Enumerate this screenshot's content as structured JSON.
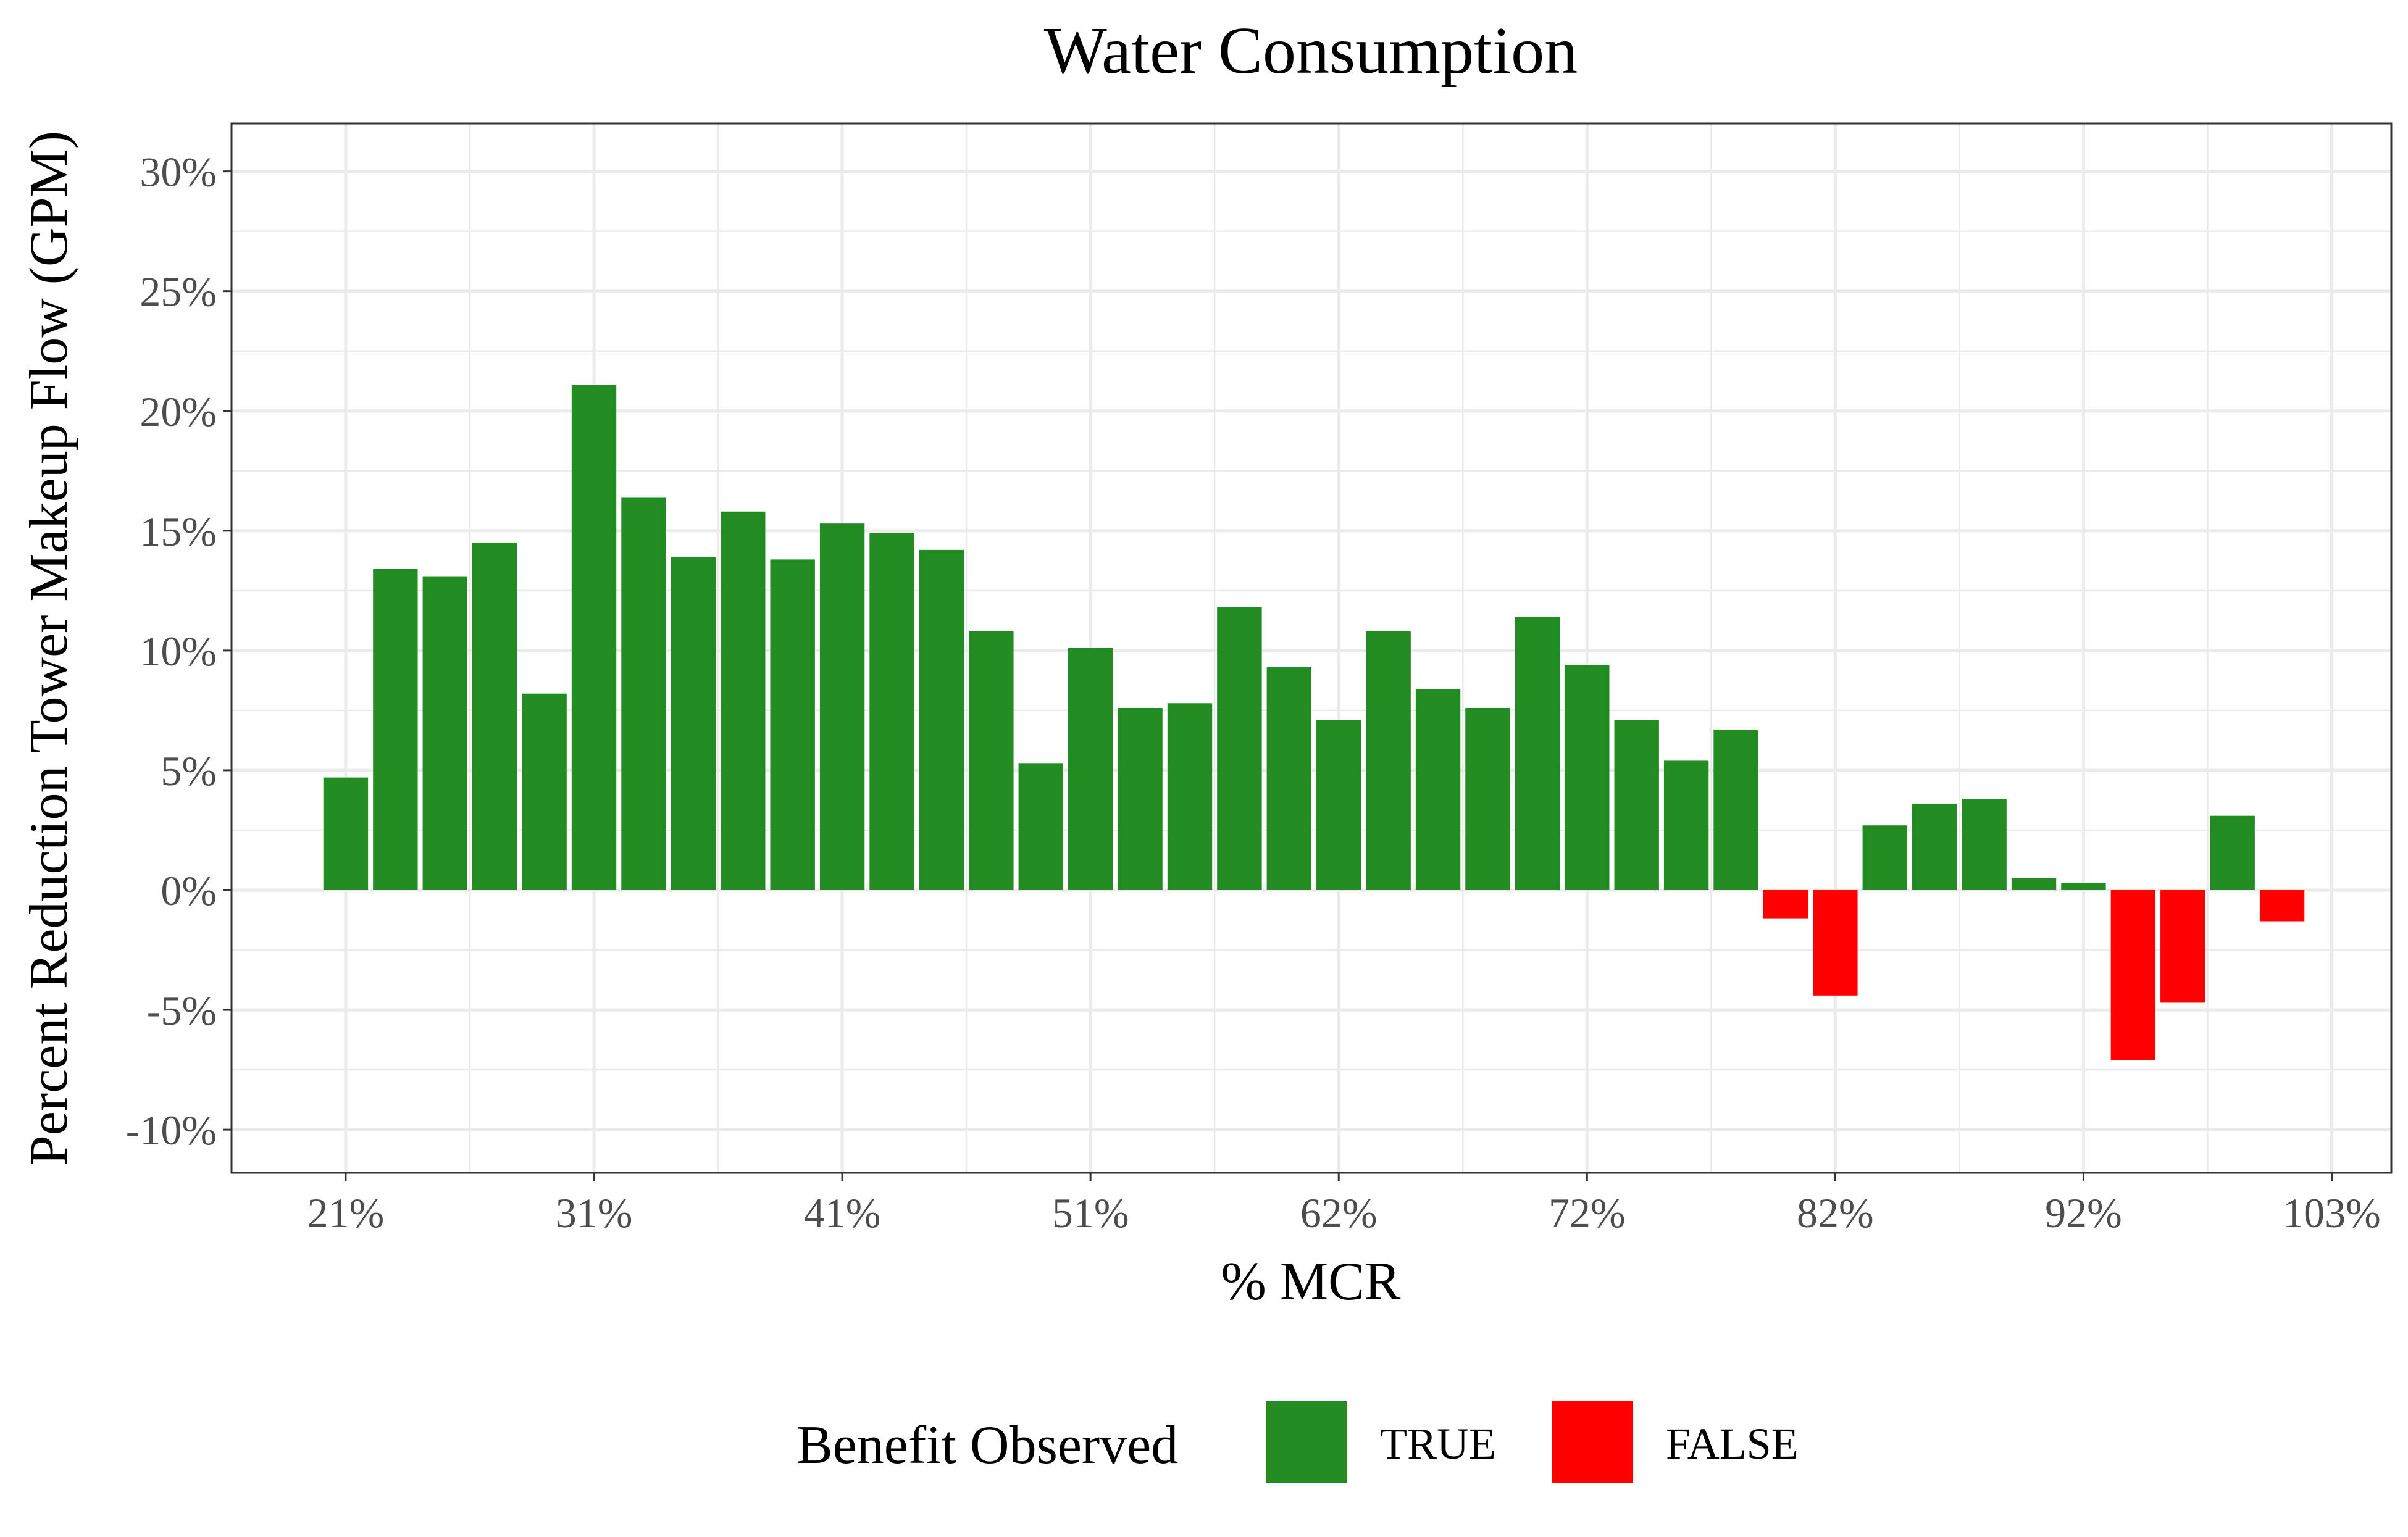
{
  "chart_data": {
    "type": "bar",
    "title": "Water Consumption",
    "xlabel": "% MCR",
    "ylabel": "Percent Reduction Tower Makeup Flow (GPM)",
    "x_tick_labels": [
      "21%",
      "31%",
      "41%",
      "51%",
      "62%",
      "72%",
      "82%",
      "92%",
      "103%"
    ],
    "x_tick_positions": [
      21,
      31,
      41,
      51,
      61,
      71,
      81,
      91,
      101
    ],
    "xlim": [
      16.4,
      103.4
    ],
    "y_tick_labels": [
      "-10%",
      "-5%",
      "0%",
      "5%",
      "10%",
      "15%",
      "20%",
      "25%",
      "30%"
    ],
    "y_tick_values": [
      -10,
      -5,
      0,
      5,
      10,
      15,
      20,
      25,
      30
    ],
    "ylim": [
      -11.8,
      32.0
    ],
    "grid": true,
    "legend_position": "bottom",
    "legend": {
      "title": "Benefit Observed",
      "entries": [
        {
          "label": "TRUE",
          "color": "#228B22"
        },
        {
          "label": "FALSE",
          "color": "#FF0000"
        }
      ]
    },
    "colors": {
      "true": "#228B22",
      "false": "#FF0000"
    },
    "bar_width": 1.8,
    "points": [
      {
        "x": 21,
        "y": 4.7,
        "benefit": true
      },
      {
        "x": 23,
        "y": 13.4,
        "benefit": true
      },
      {
        "x": 25,
        "y": 13.1,
        "benefit": true
      },
      {
        "x": 27,
        "y": 14.5,
        "benefit": true
      },
      {
        "x": 29,
        "y": 8.2,
        "benefit": true
      },
      {
        "x": 31,
        "y": 21.1,
        "benefit": true
      },
      {
        "x": 33,
        "y": 16.4,
        "benefit": true
      },
      {
        "x": 35,
        "y": 13.9,
        "benefit": true
      },
      {
        "x": 37,
        "y": 15.8,
        "benefit": true
      },
      {
        "x": 39,
        "y": 13.8,
        "benefit": true
      },
      {
        "x": 41,
        "y": 15.3,
        "benefit": true
      },
      {
        "x": 43,
        "y": 14.9,
        "benefit": true
      },
      {
        "x": 45,
        "y": 14.2,
        "benefit": true
      },
      {
        "x": 47,
        "y": 10.8,
        "benefit": true
      },
      {
        "x": 49,
        "y": 5.3,
        "benefit": true
      },
      {
        "x": 51,
        "y": 10.1,
        "benefit": true
      },
      {
        "x": 53,
        "y": 7.6,
        "benefit": true
      },
      {
        "x": 55,
        "y": 7.8,
        "benefit": true
      },
      {
        "x": 57,
        "y": 11.8,
        "benefit": true
      },
      {
        "x": 59,
        "y": 9.3,
        "benefit": true
      },
      {
        "x": 61,
        "y": 7.1,
        "benefit": true
      },
      {
        "x": 63,
        "y": 10.8,
        "benefit": true
      },
      {
        "x": 65,
        "y": 8.4,
        "benefit": true
      },
      {
        "x": 67,
        "y": 7.6,
        "benefit": true
      },
      {
        "x": 69,
        "y": 11.4,
        "benefit": true
      },
      {
        "x": 71,
        "y": 9.4,
        "benefit": true
      },
      {
        "x": 73,
        "y": 7.1,
        "benefit": true
      },
      {
        "x": 75,
        "y": 5.4,
        "benefit": true
      },
      {
        "x": 77,
        "y": 6.7,
        "benefit": true
      },
      {
        "x": 79,
        "y": -1.2,
        "benefit": false
      },
      {
        "x": 81,
        "y": -4.4,
        "benefit": false
      },
      {
        "x": 83,
        "y": 2.7,
        "benefit": true
      },
      {
        "x": 85,
        "y": 3.6,
        "benefit": true
      },
      {
        "x": 87,
        "y": 3.8,
        "benefit": true
      },
      {
        "x": 89,
        "y": 0.5,
        "benefit": true
      },
      {
        "x": 91,
        "y": 0.3,
        "benefit": true
      },
      {
        "x": 93,
        "y": -7.1,
        "benefit": false
      },
      {
        "x": 95,
        "y": -4.7,
        "benefit": false
      },
      {
        "x": 97,
        "y": 3.1,
        "benefit": true
      },
      {
        "x": 99,
        "y": -1.3,
        "benefit": false
      }
    ]
  }
}
